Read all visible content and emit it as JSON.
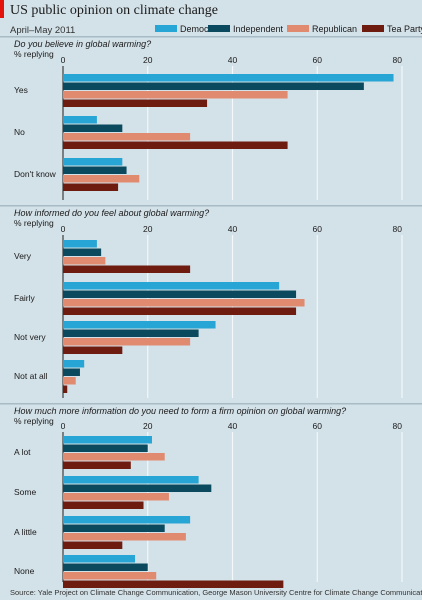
{
  "title": "US public opinion on climate change",
  "subtitle": "April–May 2011",
  "source": "Source: Yale Project on Climate Change Communication, George Mason University Centre for Climate Change Communication",
  "colors": {
    "background": "#d3e1e8",
    "grid": "#f4f8fa",
    "accent": "#e3120b"
  },
  "chart_data": [
    {
      "type": "bar",
      "orientation": "horizontal",
      "title": "Do you believe in global warming?",
      "unit_label": "% replying",
      "xlim": [
        0,
        80
      ],
      "xticks": [
        0,
        20,
        40,
        60,
        80
      ],
      "categories": [
        "Yes",
        "No",
        "Don't know"
      ],
      "series": [
        {
          "name": "Democrat",
          "color": "#27a5d4",
          "values": [
            78,
            8,
            14
          ]
        },
        {
          "name": "Independent",
          "color": "#0b4a5e",
          "values": [
            71,
            14,
            15
          ]
        },
        {
          "name": "Republican",
          "color": "#e08a70",
          "values": [
            53,
            30,
            18
          ]
        },
        {
          "name": "Tea Party",
          "color": "#6e1c10",
          "values": [
            34,
            53,
            13
          ]
        }
      ]
    },
    {
      "type": "bar",
      "orientation": "horizontal",
      "title": "How informed do you feel about global warming?",
      "unit_label": "% replying",
      "xlim": [
        0,
        80
      ],
      "xticks": [
        0,
        20,
        40,
        60,
        80
      ],
      "categories": [
        "Very",
        "Fairly",
        "Not very",
        "Not at all"
      ],
      "series": [
        {
          "name": "Democrat",
          "color": "#27a5d4",
          "values": [
            8,
            51,
            36,
            5
          ]
        },
        {
          "name": "Independent",
          "color": "#0b4a5e",
          "values": [
            9,
            55,
            32,
            4
          ]
        },
        {
          "name": "Republican",
          "color": "#e08a70",
          "values": [
            10,
            57,
            30,
            3
          ]
        },
        {
          "name": "Tea Party",
          "color": "#6e1c10",
          "values": [
            30,
            55,
            14,
            1
          ]
        }
      ]
    },
    {
      "type": "bar",
      "orientation": "horizontal",
      "title": "How much more information do you need to form a firm opinion on global warming?",
      "unit_label": "% replying",
      "xlim": [
        0,
        80
      ],
      "xticks": [
        0,
        20,
        40,
        60,
        80
      ],
      "categories": [
        "A lot",
        "Some",
        "A little",
        "None"
      ],
      "series": [
        {
          "name": "Democrat",
          "color": "#27a5d4",
          "values": [
            21,
            32,
            30,
            17
          ]
        },
        {
          "name": "Independent",
          "color": "#0b4a5e",
          "values": [
            20,
            35,
            24,
            20
          ]
        },
        {
          "name": "Republican",
          "color": "#e08a70",
          "values": [
            24,
            25,
            29,
            22
          ]
        },
        {
          "name": "Tea Party",
          "color": "#6e1c10",
          "values": [
            16,
            19,
            14,
            52
          ]
        }
      ]
    }
  ]
}
